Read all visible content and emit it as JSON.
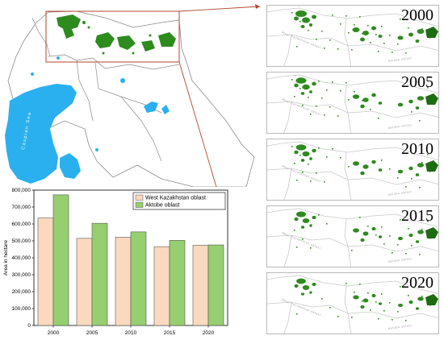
{
  "panels": [
    {
      "year": "2000"
    },
    {
      "year": "2005"
    },
    {
      "year": "2010"
    },
    {
      "year": "2015"
    },
    {
      "year": "2020"
    }
  ],
  "map": {
    "sea_label": "Caspian Sea",
    "panel_region_labels": [
      "West Kazakhstan oblast",
      "Aktobe oblast"
    ],
    "colors": {
      "water": "#2ab0ee",
      "cropland": "#2e8b1e",
      "border": "#8a8a8a",
      "highlight": "#b5462b"
    }
  },
  "chart_data": {
    "type": "bar",
    "categories": [
      "2000",
      "2005",
      "2010",
      "2015",
      "2020"
    ],
    "series": [
      {
        "name": "West Kazakhstan oblast",
        "values": [
          635000,
          515000,
          522000,
          466000,
          474000
        ],
        "color": "#fad9bf"
      },
      {
        "name": "Aktobe oblast",
        "values": [
          772000,
          604000,
          553000,
          503000,
          476000
        ],
        "color": "#96cf6f"
      }
    ],
    "ylabel": "Area in hectare",
    "ylim": [
      0,
      800000
    ],
    "yticks": [
      "0",
      "100,000",
      "200,000",
      "300,000",
      "400,000",
      "500,000",
      "600,000",
      "700,000",
      "800,000"
    ],
    "legend_position": "top-right"
  }
}
